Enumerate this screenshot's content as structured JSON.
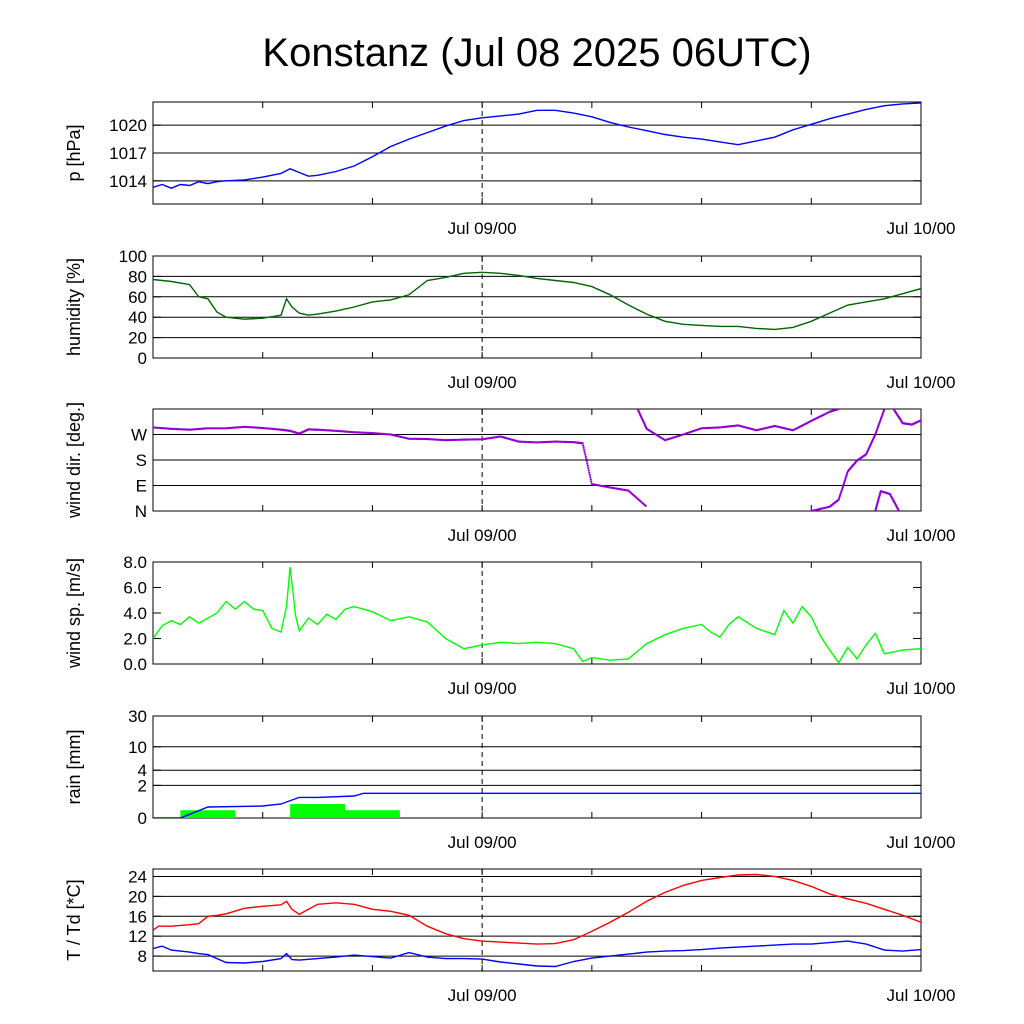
{
  "title": "Konstanz (Jul 08 2025 06UTC)",
  "colors": {
    "pressure": "#0000ff",
    "humidity": "#006400",
    "wind_dir": "#9400d3",
    "wind_speed": "#00ff00",
    "rain_bar": "#00ff00",
    "rain_cum": "#0000ff",
    "temperature": "#ff0000",
    "dewpoint": "#0000ff"
  },
  "chart_data": [
    {
      "type": "line",
      "name": "pressure",
      "ylabel": "p [hPa]",
      "xtick_labels": [
        "Jul 09/00",
        "Jul 10/00"
      ],
      "x_range_hours": [
        0,
        42
      ],
      "ylim": [
        1011.5,
        1022.5
      ],
      "yticks": [
        1014,
        1017,
        1020
      ],
      "ytick_labels": [
        "1014",
        "1017",
        "1020"
      ],
      "grid": true,
      "series": [
        {
          "x": [
            0,
            0.5,
            1,
            1.5,
            2,
            2.5,
            3,
            3.5,
            4,
            5,
            6,
            7,
            7.5,
            8,
            8.5,
            9,
            10,
            11,
            12,
            13,
            14,
            15,
            16,
            17,
            18,
            19,
            20,
            21,
            22,
            23,
            24,
            25,
            26,
            27,
            28,
            29,
            30,
            31,
            32,
            33,
            34,
            35,
            36,
            37,
            38,
            39,
            40,
            41,
            42
          ],
          "y": [
            1013.3,
            1013.6,
            1013.2,
            1013.6,
            1013.5,
            1013.9,
            1013.7,
            1013.9,
            1014.0,
            1014.1,
            1014.4,
            1014.8,
            1015.3,
            1014.9,
            1014.5,
            1014.6,
            1015.0,
            1015.6,
            1016.6,
            1017.7,
            1018.5,
            1019.2,
            1019.9,
            1020.5,
            1020.8,
            1021.0,
            1021.2,
            1021.6,
            1021.6,
            1021.3,
            1020.9,
            1020.3,
            1019.8,
            1019.4,
            1019.0,
            1018.7,
            1018.5,
            1018.2,
            1017.9,
            1018.3,
            1018.7,
            1019.5,
            1020.1,
            1020.7,
            1021.2,
            1021.7,
            1022.1,
            1022.3,
            1022.4
          ]
        }
      ]
    },
    {
      "type": "line",
      "name": "humidity",
      "ylabel": "humidity [%]",
      "xtick_labels": [
        "Jul 09/00",
        "Jul 10/00"
      ],
      "x_range_hours": [
        0,
        42
      ],
      "ylim": [
        0,
        100
      ],
      "yticks": [
        0,
        20,
        40,
        60,
        80,
        100
      ],
      "ytick_labels": [
        "0",
        "20",
        "40",
        "60",
        "80",
        "100"
      ],
      "grid": true,
      "series": [
        {
          "x": [
            0,
            1,
            2,
            2.5,
            3,
            3.5,
            4,
            5,
            6,
            7,
            7.3,
            7.6,
            8,
            8.5,
            9,
            10,
            11,
            12,
            13,
            14,
            15,
            16,
            17,
            18,
            19,
            20,
            21,
            22,
            23,
            24,
            25,
            26,
            27,
            28,
            29,
            30,
            31,
            32,
            33,
            34,
            35,
            36,
            37,
            38,
            39,
            40,
            41,
            42
          ],
          "y": [
            77,
            75,
            72,
            60,
            58,
            45,
            40,
            38,
            39,
            42,
            58,
            50,
            44,
            42,
            43,
            46,
            50,
            55,
            57,
            62,
            76,
            79,
            83,
            84,
            83,
            81,
            78,
            76,
            74,
            70,
            62,
            52,
            43,
            36,
            33,
            32,
            31,
            31,
            29,
            28,
            30,
            36,
            44,
            52,
            55,
            58,
            63,
            68
          ]
        }
      ]
    },
    {
      "type": "scatter",
      "name": "wind direction",
      "ylabel": "wind dir. [deg.]",
      "xtick_labels": [
        "Jul 09/00",
        "Jul 10/00"
      ],
      "x_range_hours": [
        0,
        42
      ],
      "ylim": [
        0,
        360
      ],
      "yticks": [
        0,
        90,
        180,
        270
      ],
      "ytick_labels": [
        "N",
        "E",
        "S",
        "W"
      ],
      "grid": true,
      "segments": [
        {
          "x": [
            0,
            1,
            2,
            3,
            4,
            5,
            6,
            7,
            7.5,
            8,
            8.5,
            9,
            10,
            11,
            12,
            13,
            14,
            15,
            16,
            17,
            18,
            19,
            20,
            21,
            22,
            23,
            23.5,
            24,
            25,
            26,
            27
          ],
          "y": [
            295,
            290,
            287,
            292,
            292,
            297,
            293,
            287,
            283,
            273,
            288,
            287,
            283,
            278,
            275,
            270,
            255,
            254,
            250,
            252,
            253,
            263,
            245,
            242,
            245,
            243,
            239,
            95,
            83,
            72,
            15
          ]
        },
        {
          "x": [
            26.5,
            27,
            28,
            29,
            30,
            31,
            32,
            33,
            34,
            35,
            36,
            37,
            37.5
          ],
          "y": [
            360,
            290,
            250,
            270,
            292,
            295,
            302,
            285,
            300,
            285,
            318,
            350,
            360
          ]
        },
        {
          "x": [
            36,
            37,
            37.5,
            38,
            38.5,
            39,
            39.5,
            40
          ],
          "y": [
            0,
            15,
            40,
            140,
            178,
            200,
            270,
            360
          ]
        },
        {
          "x": [
            39.5,
            39.8,
            40.3,
            40.8
          ],
          "y": [
            0,
            70,
            60,
            0
          ]
        },
        {
          "x": [
            40.5,
            41,
            41.5,
            42
          ],
          "y": [
            360,
            310,
            305,
            320
          ]
        }
      ]
    },
    {
      "type": "line",
      "name": "wind speed",
      "ylabel": "wind sp. [m/s]",
      "xtick_labels": [
        "Jul 09/00",
        "Jul 10/00"
      ],
      "x_range_hours": [
        0,
        42
      ],
      "ylim": [
        0,
        8
      ],
      "yticks": [
        0,
        2,
        4,
        6,
        8
      ],
      "ytick_labels": [
        "0.0",
        "2.0",
        "4.0",
        "6.0",
        "8.0"
      ],
      "grid": false,
      "series": [
        {
          "x": [
            0,
            0.5,
            1,
            1.5,
            2,
            2.5,
            3,
            3.5,
            4,
            4.5,
            5,
            5.5,
            6,
            6.5,
            7,
            7.3,
            7.5,
            7.8,
            8,
            8.5,
            9,
            9.5,
            10,
            10.5,
            11,
            12,
            13,
            14,
            15,
            16,
            17,
            18,
            19,
            20,
            21,
            22,
            23,
            23.5,
            24,
            25,
            26,
            27,
            28,
            29,
            30,
            30.5,
            31,
            31.5,
            32,
            33,
            34,
            34.5,
            35,
            35.5,
            36,
            36.5,
            37,
            37.5,
            38,
            38.5,
            39,
            39.5,
            40,
            41,
            42
          ],
          "y": [
            2.0,
            3.0,
            3.4,
            3.1,
            3.7,
            3.2,
            3.6,
            4.0,
            4.9,
            4.3,
            4.9,
            4.3,
            4.2,
            2.8,
            2.5,
            4.5,
            7.6,
            3.8,
            2.6,
            3.6,
            3.1,
            3.9,
            3.5,
            4.3,
            4.5,
            4.1,
            3.4,
            3.7,
            3.3,
            2.0,
            1.2,
            1.5,
            1.7,
            1.6,
            1.7,
            1.6,
            1.2,
            0.2,
            0.5,
            0.3,
            0.4,
            1.6,
            2.3,
            2.8,
            3.1,
            2.5,
            2.1,
            3.1,
            3.7,
            2.8,
            2.3,
            4.2,
            3.2,
            4.5,
            3.7,
            2.2,
            1.1,
            0.1,
            1.3,
            0.4,
            1.5,
            2.4,
            0.8,
            1.1,
            1.2
          ]
        }
      ]
    },
    {
      "type": "bar",
      "name": "rain",
      "ylabel": "rain [mm]",
      "xtick_labels": [
        "Jul 09/00",
        "Jul 10/00"
      ],
      "x_range_hours": [
        0,
        42
      ],
      "ylim": [
        0,
        30
      ],
      "yticks": [
        0,
        2,
        4,
        10,
        30
      ],
      "ytick_labels": [
        "0",
        "2",
        "4",
        "10",
        "30"
      ],
      "scale_note": "nonlinear axis",
      "grid": true,
      "bars": [
        {
          "x0": 1.5,
          "x1": 4.5,
          "value": 0.3
        },
        {
          "x0": 7.5,
          "x1": 10.5,
          "value": 0.6
        },
        {
          "x0": 10.5,
          "x1": 13.5,
          "value": 0.3
        }
      ],
      "cumulative": {
        "x": [
          0,
          1.5,
          3,
          6,
          7,
          8,
          9,
          11,
          11.5,
          12,
          42
        ],
        "y": [
          0,
          0,
          0.45,
          0.5,
          0.6,
          1.0,
          1.0,
          1.1,
          1.3,
          1.3,
          1.3
        ]
      }
    },
    {
      "type": "line",
      "name": "temperature and dewpoint",
      "ylabel": "T / Td [*C]",
      "xtick_labels": [
        "Jul 09/00",
        "Jul 10/00"
      ],
      "x_range_hours": [
        0,
        42
      ],
      "ylim": [
        5,
        25.5
      ],
      "yticks": [
        8,
        12,
        16,
        20,
        24
      ],
      "ytick_labels": [
        "8",
        "12",
        "16",
        "20",
        "24"
      ],
      "grid": true,
      "series": [
        {
          "x": [
            0,
            0.3,
            1,
            2,
            2.5,
            3,
            3.5,
            4,
            5,
            6,
            7,
            7.3,
            7.6,
            8,
            9,
            10,
            11,
            12,
            13,
            14,
            15,
            16,
            17,
            18,
            19,
            20,
            21,
            22,
            23,
            24,
            25,
            26,
            27,
            28,
            29,
            30,
            31,
            32,
            33,
            34,
            35,
            36,
            37,
            38,
            39,
            40,
            41,
            42
          ],
          "y": [
            13.2,
            14.0,
            14.0,
            14.3,
            14.5,
            16.0,
            16.2,
            16.5,
            17.6,
            18.0,
            18.3,
            19.0,
            17.4,
            16.4,
            18.4,
            18.7,
            18.4,
            17.4,
            17.0,
            16.2,
            14.0,
            12.5,
            11.5,
            11.0,
            10.8,
            10.6,
            10.4,
            10.5,
            11.3,
            13.0,
            14.8,
            16.8,
            19.0,
            20.8,
            22.2,
            23.2,
            23.8,
            24.3,
            24.4,
            24.0,
            23.2,
            22.0,
            20.5,
            19.5,
            18.6,
            17.4,
            16.2,
            14.8
          ]
        },
        {
          "x": [
            0,
            0.5,
            1,
            2,
            2.5,
            3,
            3.5,
            4,
            5,
            6,
            7,
            7.3,
            7.6,
            8,
            9,
            10,
            11,
            12,
            13,
            14,
            15,
            16,
            17,
            18,
            19,
            20,
            21,
            22,
            23,
            24,
            25,
            26,
            27,
            28,
            29,
            30,
            31,
            32,
            33,
            34,
            35,
            36,
            37,
            38,
            39,
            40,
            41,
            42
          ],
          "y": [
            9.5,
            10.0,
            9.2,
            8.8,
            8.5,
            8.3,
            7.5,
            6.7,
            6.6,
            6.9,
            7.5,
            8.5,
            7.3,
            7.2,
            7.5,
            7.8,
            8.2,
            7.9,
            7.6,
            8.7,
            7.8,
            7.5,
            7.5,
            7.4,
            6.8,
            6.4,
            6.0,
            5.9,
            6.9,
            7.6,
            8.0,
            8.4,
            8.8,
            9.0,
            9.1,
            9.3,
            9.6,
            9.8,
            10.0,
            10.2,
            10.4,
            10.4,
            10.7,
            11.0,
            10.4,
            9.2,
            9.0,
            9.3
          ]
        }
      ]
    }
  ]
}
